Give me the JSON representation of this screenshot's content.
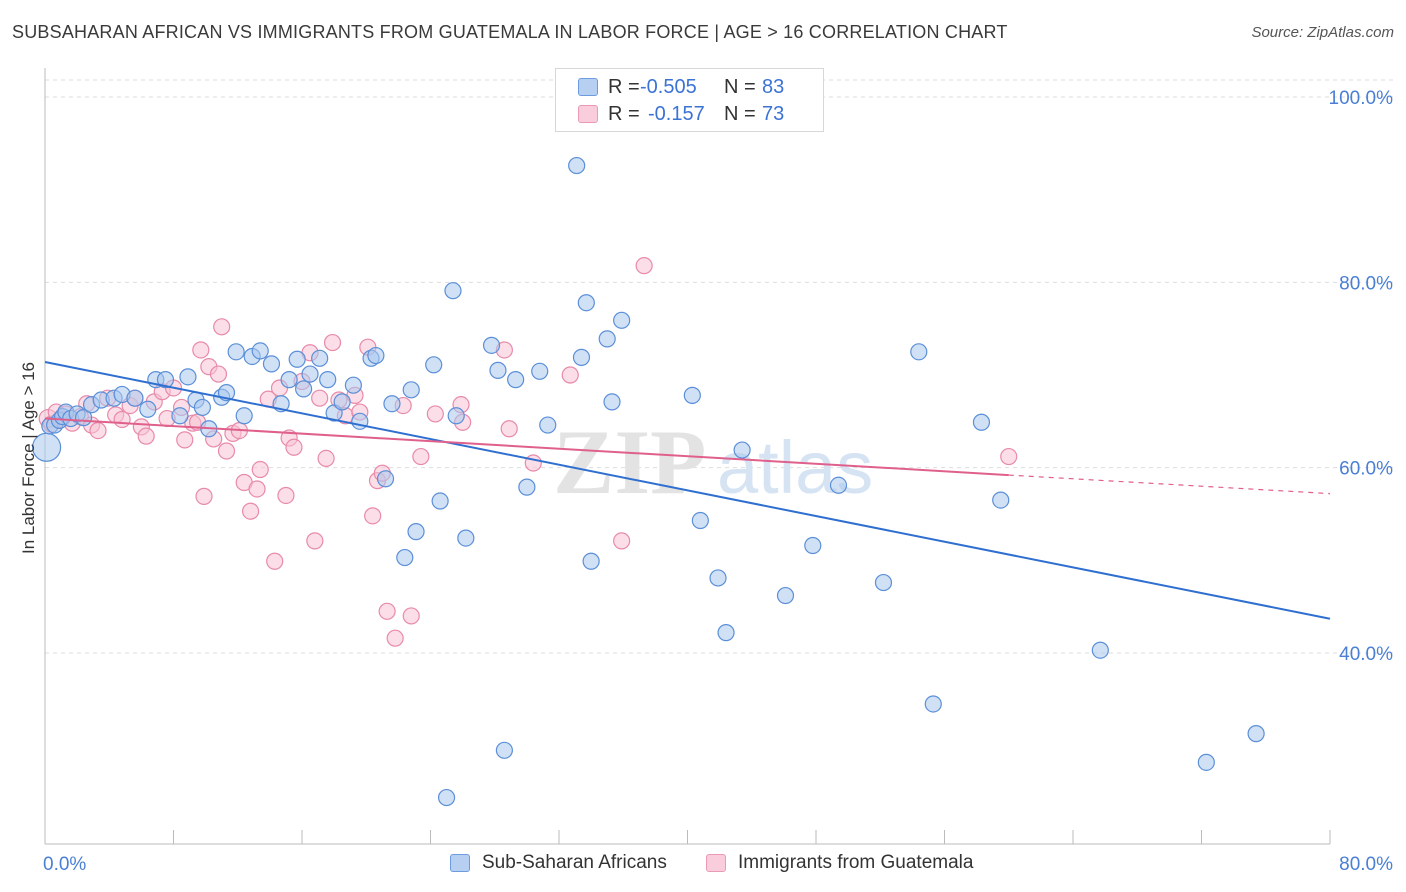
{
  "header": {
    "title": "SUBSAHARAN AFRICAN VS IMMIGRANTS FROM GUATEMALA IN LABOR FORCE | AGE > 16 CORRELATION CHART",
    "source": "Source: ZipAtlas.com"
  },
  "legend": {
    "rows": [
      {
        "r_label": "R =",
        "r_value": "-0.505",
        "n_label": "N =",
        "n_value": "83"
      },
      {
        "r_label": "R =",
        "r_value": "-0.157",
        "n_label": "N =",
        "n_value": "73"
      }
    ],
    "series_labels": [
      "Sub-Saharan Africans",
      "Immigrants from Guatemala"
    ]
  },
  "watermark": {
    "zip": "ZIP",
    "atlas": "atlas"
  },
  "colors": {
    "blue_fill": "#a9c8ef",
    "blue_stroke": "#5b8fd8",
    "blue_line": "#2f6fd0",
    "pink_fill": "#f7c3d3",
    "pink_stroke": "#e88aaa",
    "pink_line": "#e0608c",
    "tick_label": "#4a7fd4",
    "grid": "#dddddd"
  },
  "chart_data": {
    "type": "scatter",
    "title": "SUBSAHARAN AFRICAN VS IMMIGRANTS FROM GUATEMALA IN LABOR FORCE | AGE > 16 CORRELATION CHART",
    "xlabel": "",
    "ylabel": "In Labor Force | Age > 16",
    "xlim": [
      0,
      80
    ],
    "ylim": [
      20,
      102
    ],
    "x_tick_labels": [
      "0.0%",
      "80.0%"
    ],
    "y_ticks": [
      40,
      60,
      80,
      100
    ],
    "y_tick_labels": [
      "40.0%",
      "60.0%",
      "80.0%",
      "100.0%"
    ],
    "grid": true,
    "legend_position": "top-center",
    "series": [
      {
        "name": "Sub-Saharan Africans",
        "r": -0.505,
        "n": 83,
        "trend": {
          "x": [
            0,
            80
          ],
          "y": [
            71.4,
            43.7
          ],
          "dashed_from": null
        },
        "points": [
          [
            0.1,
            62.2,
            14
          ],
          [
            0.3,
            64.5,
            8
          ],
          [
            0.6,
            64.6,
            8
          ],
          [
            0.9,
            65.1,
            8
          ],
          [
            1.1,
            65.5,
            8
          ],
          [
            1.3,
            66,
            8
          ],
          [
            1.6,
            65.3,
            8
          ],
          [
            2.0,
            65.8,
            8
          ],
          [
            2.4,
            65.4,
            8
          ],
          [
            2.9,
            66.8,
            8
          ],
          [
            3.5,
            67.3,
            8
          ],
          [
            4.3,
            67.5,
            8
          ],
          [
            4.8,
            67.9,
            8
          ],
          [
            5.6,
            67.5,
            8
          ],
          [
            6.4,
            66.3,
            8
          ],
          [
            6.9,
            69.5,
            8
          ],
          [
            7.5,
            69.5,
            8
          ],
          [
            8.4,
            65.6,
            8
          ],
          [
            8.9,
            69.8,
            8
          ],
          [
            9.4,
            67.3,
            8
          ],
          [
            9.8,
            66.5,
            8
          ],
          [
            10.2,
            64.2,
            8
          ],
          [
            11.0,
            67.6,
            8
          ],
          [
            11.3,
            68.1,
            8
          ],
          [
            11.9,
            72.5,
            8
          ],
          [
            12.4,
            65.6,
            8
          ],
          [
            12.9,
            72.0,
            8
          ],
          [
            13.4,
            72.6,
            8
          ],
          [
            14.1,
            71.2,
            8
          ],
          [
            14.7,
            66.9,
            8
          ],
          [
            15.2,
            69.5,
            8
          ],
          [
            15.7,
            71.7,
            8
          ],
          [
            16.1,
            68.5,
            8
          ],
          [
            16.5,
            70.1,
            8
          ],
          [
            17.1,
            71.8,
            8
          ],
          [
            17.6,
            69.5,
            8
          ],
          [
            18.0,
            65.9,
            8
          ],
          [
            18.5,
            67.1,
            8
          ],
          [
            19.2,
            68.9,
            8
          ],
          [
            19.6,
            65.0,
            8
          ],
          [
            20.3,
            71.8,
            8
          ],
          [
            20.6,
            72.1,
            8
          ],
          [
            21.2,
            58.8,
            8
          ],
          [
            21.6,
            66.9,
            8
          ],
          [
            22.4,
            50.3,
            8
          ],
          [
            22.8,
            68.4,
            8
          ],
          [
            23.1,
            53.1,
            8
          ],
          [
            24.2,
            71.1,
            8
          ],
          [
            24.6,
            56.4,
            8
          ],
          [
            25.4,
            79.1,
            8
          ],
          [
            25.6,
            65.6,
            8
          ],
          [
            26.2,
            52.4,
            8
          ],
          [
            27.8,
            73.2,
            8
          ],
          [
            28.2,
            70.5,
            8
          ],
          [
            28.6,
            29.5,
            8
          ],
          [
            29.3,
            69.5,
            8
          ],
          [
            30.0,
            57.9,
            8
          ],
          [
            30.8,
            70.4,
            8
          ],
          [
            31.3,
            64.6,
            8
          ],
          [
            33.1,
            92.6,
            8
          ],
          [
            33.4,
            71.9,
            8
          ],
          [
            33.7,
            77.8,
            8
          ],
          [
            34.0,
            49.9,
            8
          ],
          [
            35.0,
            73.9,
            8
          ],
          [
            35.3,
            67.1,
            8
          ],
          [
            35.9,
            75.9,
            8
          ],
          [
            40.3,
            67.8,
            8
          ],
          [
            40.8,
            54.3,
            8
          ],
          [
            41.9,
            48.1,
            8
          ],
          [
            42.4,
            42.2,
            8
          ],
          [
            43.4,
            61.9,
            8
          ],
          [
            46.1,
            46.2,
            8
          ],
          [
            47.8,
            51.6,
            8
          ],
          [
            49.4,
            58.1,
            8
          ],
          [
            52.2,
            47.6,
            8
          ],
          [
            54.4,
            72.5,
            8
          ],
          [
            55.3,
            34.5,
            8
          ],
          [
            58.3,
            64.9,
            8
          ],
          [
            59.5,
            56.5,
            8
          ],
          [
            65.7,
            40.3,
            8
          ],
          [
            72.3,
            28.2,
            8
          ],
          [
            75.4,
            31.3,
            8
          ],
          [
            25.0,
            24.4,
            8
          ]
        ]
      },
      {
        "name": "Immigrants from Guatemala",
        "r": -0.157,
        "n": 73,
        "trend": {
          "x": [
            0,
            60
          ],
          "y": [
            65.3,
            59.2
          ],
          "dashed_from": 60,
          "dashed_to": [
            80,
            57.2
          ]
        },
        "points": [
          [
            0.2,
            65.3,
            9
          ],
          [
            0.4,
            64.7,
            8
          ],
          [
            0.7,
            66.0,
            8
          ],
          [
            1.0,
            65.2,
            8
          ],
          [
            1.3,
            65.8,
            8
          ],
          [
            1.7,
            64.8,
            8
          ],
          [
            2.2,
            65.5,
            8
          ],
          [
            2.6,
            66.9,
            8
          ],
          [
            2.9,
            64.6,
            8
          ],
          [
            3.3,
            64.0,
            8
          ],
          [
            3.9,
            67.5,
            8
          ],
          [
            4.4,
            65.7,
            8
          ],
          [
            4.8,
            65.2,
            8
          ],
          [
            5.3,
            66.7,
            8
          ],
          [
            5.6,
            67.5,
            8
          ],
          [
            6.0,
            64.4,
            8
          ],
          [
            6.3,
            63.4,
            8
          ],
          [
            6.8,
            67.1,
            8
          ],
          [
            7.3,
            68.2,
            8
          ],
          [
            7.6,
            65.3,
            8
          ],
          [
            8.0,
            68.6,
            8
          ],
          [
            8.5,
            66.5,
            8
          ],
          [
            8.7,
            63.0,
            8
          ],
          [
            9.2,
            64.8,
            8
          ],
          [
            9.5,
            64.9,
            8
          ],
          [
            9.7,
            72.7,
            8
          ],
          [
            9.9,
            56.9,
            8
          ],
          [
            10.2,
            70.9,
            8
          ],
          [
            10.5,
            63.1,
            8
          ],
          [
            10.8,
            70.1,
            8
          ],
          [
            11.0,
            75.2,
            8
          ],
          [
            11.3,
            61.8,
            8
          ],
          [
            11.7,
            63.7,
            8
          ],
          [
            12.1,
            64.0,
            8
          ],
          [
            12.4,
            58.4,
            8
          ],
          [
            12.8,
            55.3,
            8
          ],
          [
            13.2,
            57.7,
            8
          ],
          [
            13.4,
            59.8,
            8
          ],
          [
            13.9,
            67.4,
            8
          ],
          [
            14.3,
            49.9,
            8
          ],
          [
            14.6,
            68.6,
            8
          ],
          [
            15.0,
            57.0,
            8
          ],
          [
            15.2,
            63.2,
            8
          ],
          [
            15.5,
            62.2,
            8
          ],
          [
            16.0,
            69.3,
            8
          ],
          [
            16.5,
            72.4,
            8
          ],
          [
            16.8,
            52.1,
            8
          ],
          [
            17.1,
            67.5,
            8
          ],
          [
            17.5,
            61.0,
            8
          ],
          [
            17.9,
            73.5,
            8
          ],
          [
            18.3,
            67.3,
            8
          ],
          [
            18.7,
            65.6,
            8
          ],
          [
            19.3,
            67.8,
            8
          ],
          [
            19.6,
            66.0,
            8
          ],
          [
            20.1,
            73.0,
            8
          ],
          [
            20.4,
            54.8,
            8
          ],
          [
            20.7,
            58.6,
            8
          ],
          [
            21.0,
            59.4,
            8
          ],
          [
            21.3,
            44.5,
            8
          ],
          [
            21.8,
            41.6,
            8
          ],
          [
            22.3,
            66.7,
            8
          ],
          [
            22.8,
            44.0,
            8
          ],
          [
            23.4,
            61.2,
            8
          ],
          [
            25.9,
            66.8,
            8
          ],
          [
            28.6,
            72.7,
            8
          ],
          [
            28.9,
            64.2,
            8
          ],
          [
            30.4,
            60.5,
            8
          ],
          [
            32.7,
            70.0,
            8
          ],
          [
            35.9,
            52.1,
            8
          ],
          [
            37.3,
            81.8,
            8
          ],
          [
            60.0,
            61.2,
            8
          ],
          [
            24.3,
            65.8,
            8
          ],
          [
            26.0,
            64.9,
            8
          ]
        ]
      }
    ]
  }
}
